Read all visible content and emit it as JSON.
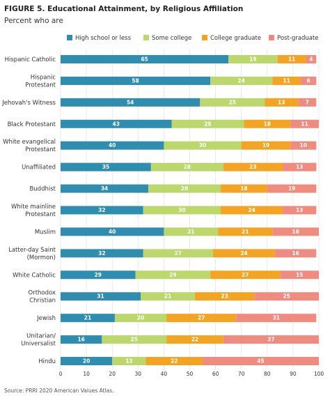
{
  "chart_data": {
    "type": "stacked-bar-horizontal",
    "title": "FIGURE 5.  Educational Attainment, by Religious Affiliation",
    "subtitle": "Percent who are",
    "source": "Source: PRRI 2020 American Values Atlas.",
    "categories": [
      [
        "Hispanic Catholic"
      ],
      [
        "Hispanic",
        "Protestant"
      ],
      [
        "Jehovah's Witness"
      ],
      [
        "Black Protestant"
      ],
      [
        "White evangelical",
        "Protestant"
      ],
      [
        "Unaffiliated"
      ],
      [
        "Buddhist"
      ],
      [
        "White mainline",
        "Protestant"
      ],
      [
        "Muslim"
      ],
      [
        "Latter-day Saint",
        "(Mormon)"
      ],
      [
        "White Catholic"
      ],
      [
        "Orthodox",
        "Christian"
      ],
      [
        "Jewish"
      ],
      [
        "Unitarian/",
        "Universalist"
      ],
      [
        "Hindu"
      ]
    ],
    "series": [
      {
        "name": "High school or less",
        "color": "#2f8db0",
        "values": [
          65,
          58,
          54,
          43,
          40,
          35,
          34,
          32,
          40,
          32,
          29,
          31,
          21,
          16,
          20
        ]
      },
      {
        "name": "Some college",
        "color": "#bcd76c",
        "values": [
          19,
          24,
          25,
          28,
          30,
          28,
          28,
          30,
          21,
          27,
          29,
          21,
          20,
          25,
          13
        ]
      },
      {
        "name": "College graduate",
        "color": "#f4a423",
        "values": [
          11,
          11,
          13,
          18,
          19,
          23,
          18,
          24,
          21,
          24,
          27,
          23,
          27,
          22,
          22
        ]
      },
      {
        "name": "Post-graduate",
        "color": "#f08b7f",
        "values": [
          4,
          6,
          7,
          11,
          10,
          13,
          19,
          13,
          18,
          16,
          15,
          25,
          31,
          37,
          45
        ]
      }
    ],
    "xlim": [
      0,
      100
    ],
    "xticks": [
      0,
      10,
      20,
      30,
      40,
      50,
      60,
      70,
      80,
      90,
      100
    ],
    "grid": true
  }
}
